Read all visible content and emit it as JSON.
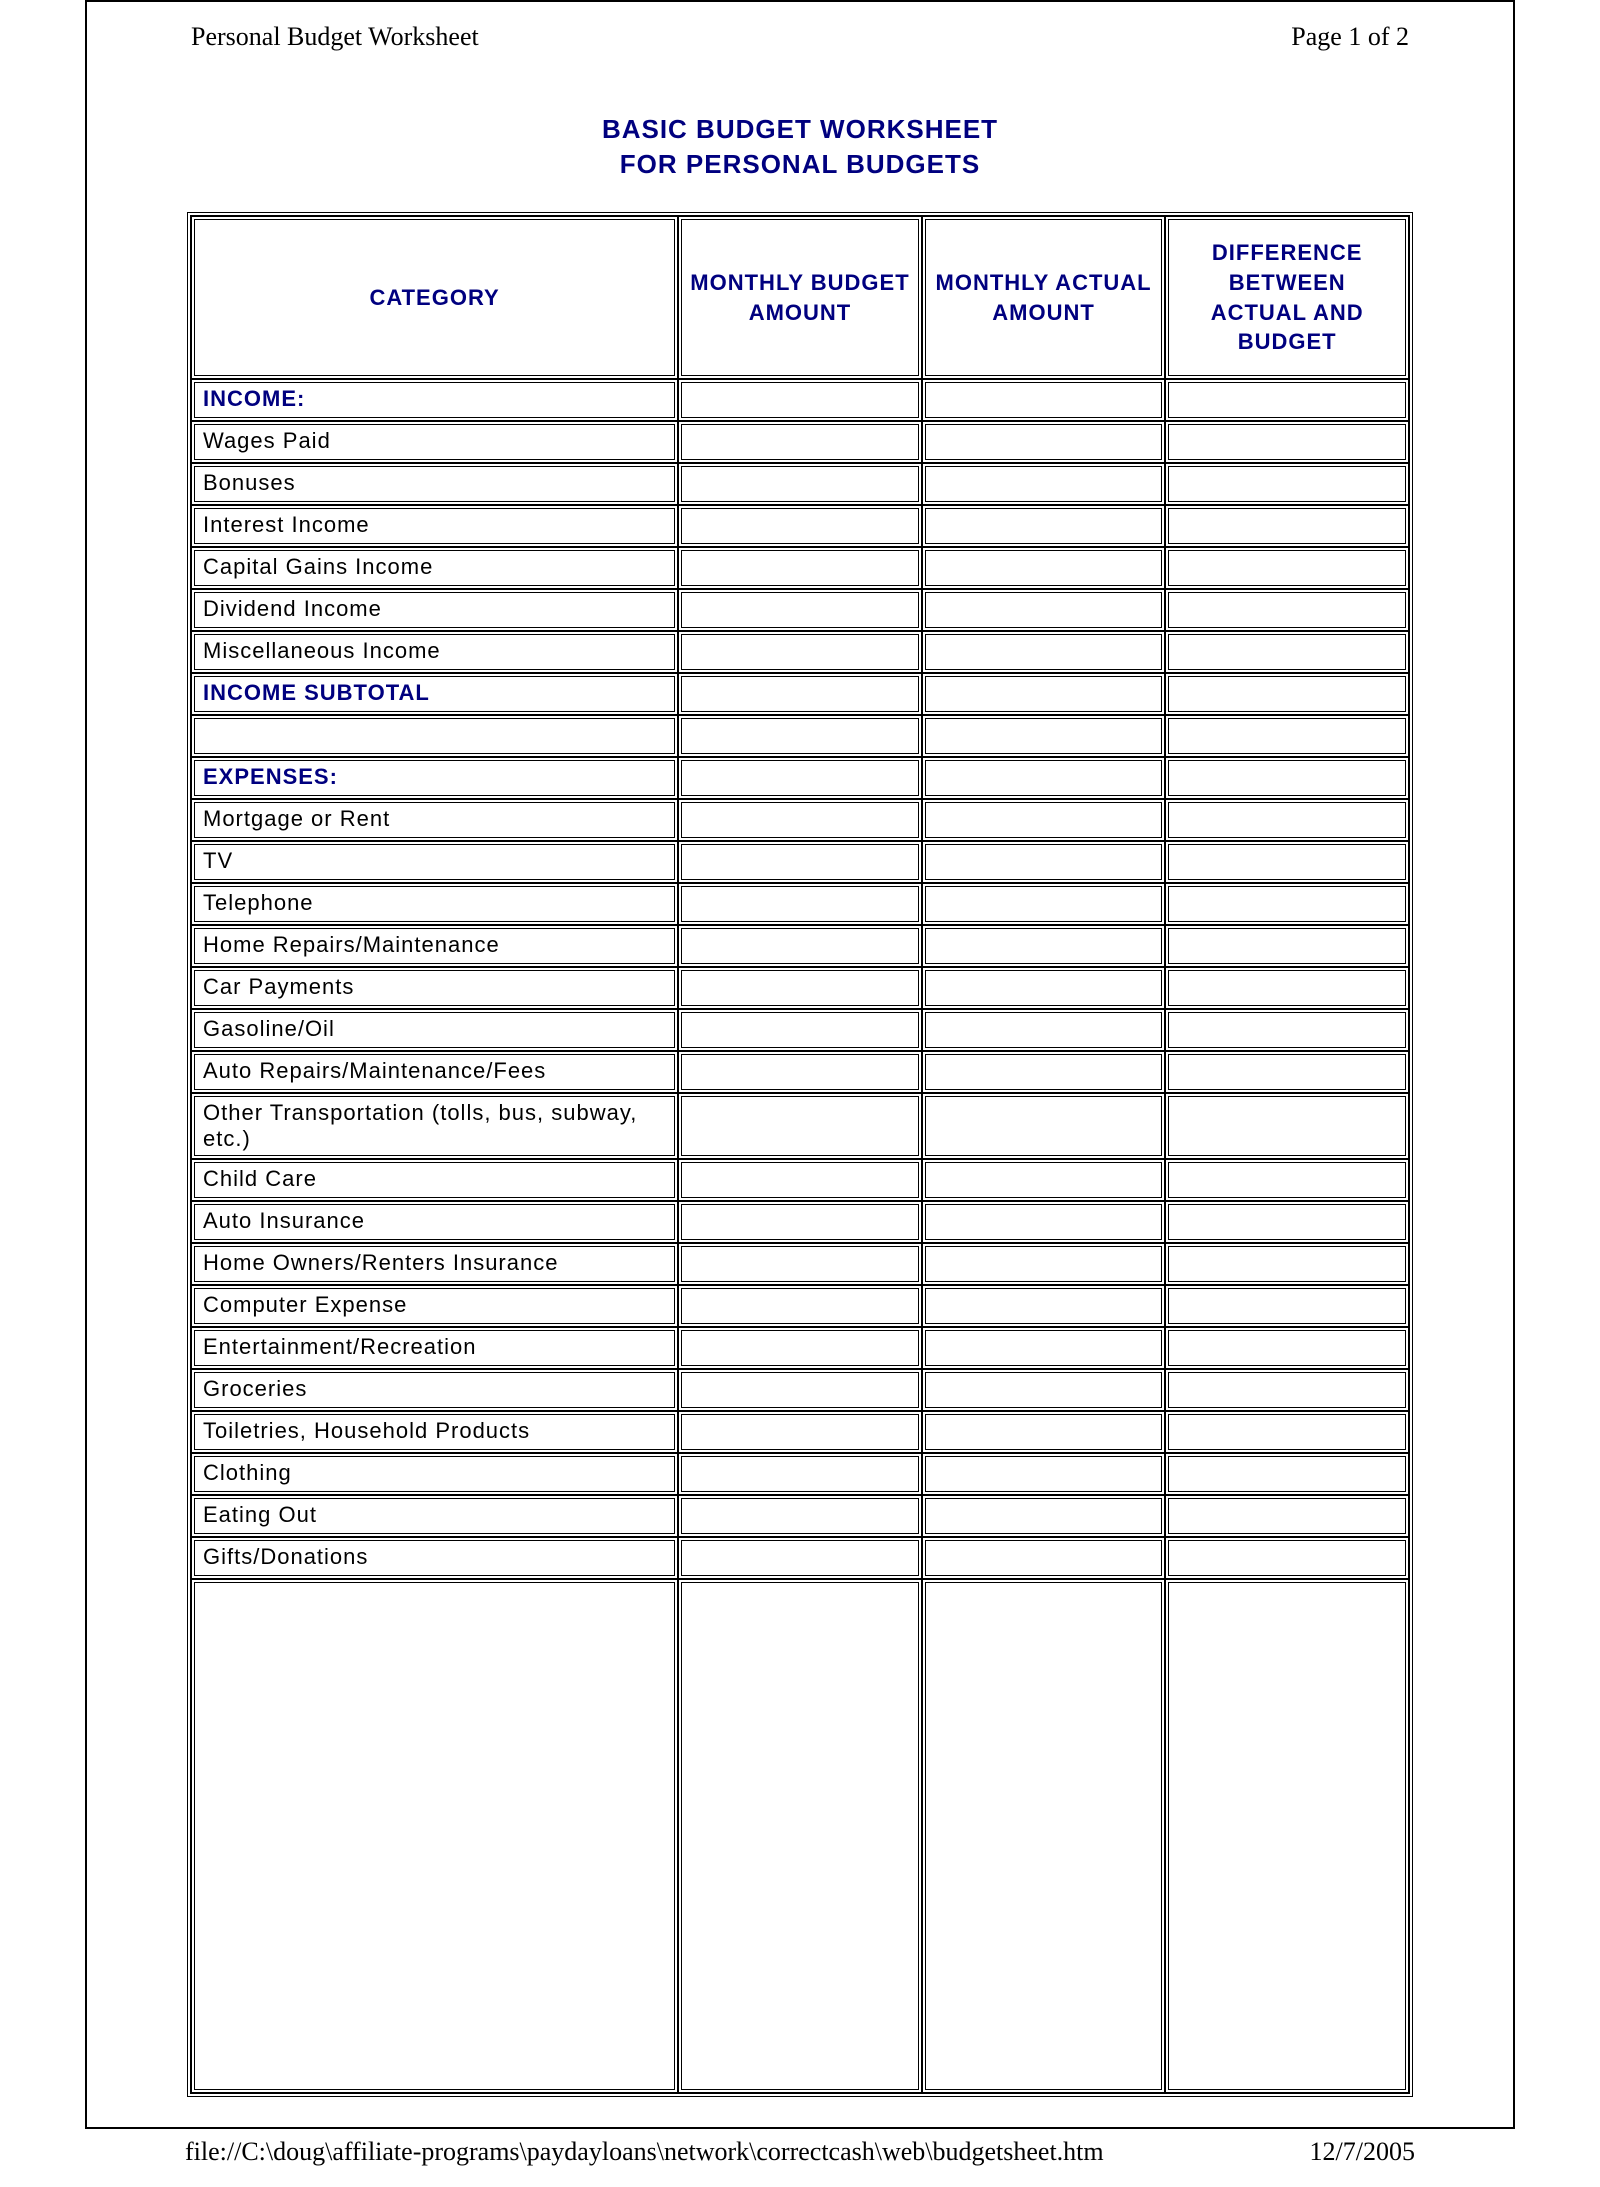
{
  "header": {
    "doc_title": "Personal Budget Worksheet",
    "page_label": "Page 1 of 2"
  },
  "title": {
    "line1": "BASIC BUDGET WORKSHEET",
    "line2": "FOR PERSONAL BUDGETS"
  },
  "table": {
    "columns": [
      "CATEGORY",
      "MONTHLY BUDGET AMOUNT",
      "MONTHLY ACTUAL AMOUNT",
      "DIFFERENCE BETWEEN ACTUAL AND BUDGET"
    ],
    "rows": [
      {
        "label": "INCOME:",
        "section": true
      },
      {
        "label": "Wages Paid"
      },
      {
        "label": "Bonuses"
      },
      {
        "label": "Interest Income"
      },
      {
        "label": "Capital Gains Income"
      },
      {
        "label": "Dividend Income"
      },
      {
        "label": "Miscellaneous Income"
      },
      {
        "label": "INCOME SUBTOTAL",
        "section": true
      },
      {
        "label": "",
        "blank": true
      },
      {
        "label": "EXPENSES:",
        "section": true
      },
      {
        "label": "Mortgage or Rent"
      },
      {
        "label": "TV"
      },
      {
        "label": "Telephone"
      },
      {
        "label": "Home Repairs/Maintenance"
      },
      {
        "label": "Car Payments"
      },
      {
        "label": "Gasoline/Oil"
      },
      {
        "label": "Auto Repairs/Maintenance/Fees"
      },
      {
        "label": "Other Transportation (tolls, bus, subway, etc.)"
      },
      {
        "label": "Child Care"
      },
      {
        "label": "Auto Insurance"
      },
      {
        "label": "Home Owners/Renters Insurance"
      },
      {
        "label": "Computer Expense"
      },
      {
        "label": "Entertainment/Recreation"
      },
      {
        "label": "Groceries"
      },
      {
        "label": "Toiletries, Household Products"
      },
      {
        "label": "Clothing"
      },
      {
        "label": "Eating Out"
      },
      {
        "label": "Gifts/Donations"
      }
    ]
  },
  "footer": {
    "path": "file://C:\\doug\\affiliate-programs\\paydayloans\\network\\correctcash\\web\\budgetsheet.htm",
    "date": "12/7/2005"
  },
  "style": {
    "accent_color": "#00007f",
    "border_color": "#000000",
    "background": "#ffffff",
    "body_font": "Arial",
    "header_font": "Times New Roman",
    "title_fontsize": 26,
    "cell_fontsize": 22
  }
}
